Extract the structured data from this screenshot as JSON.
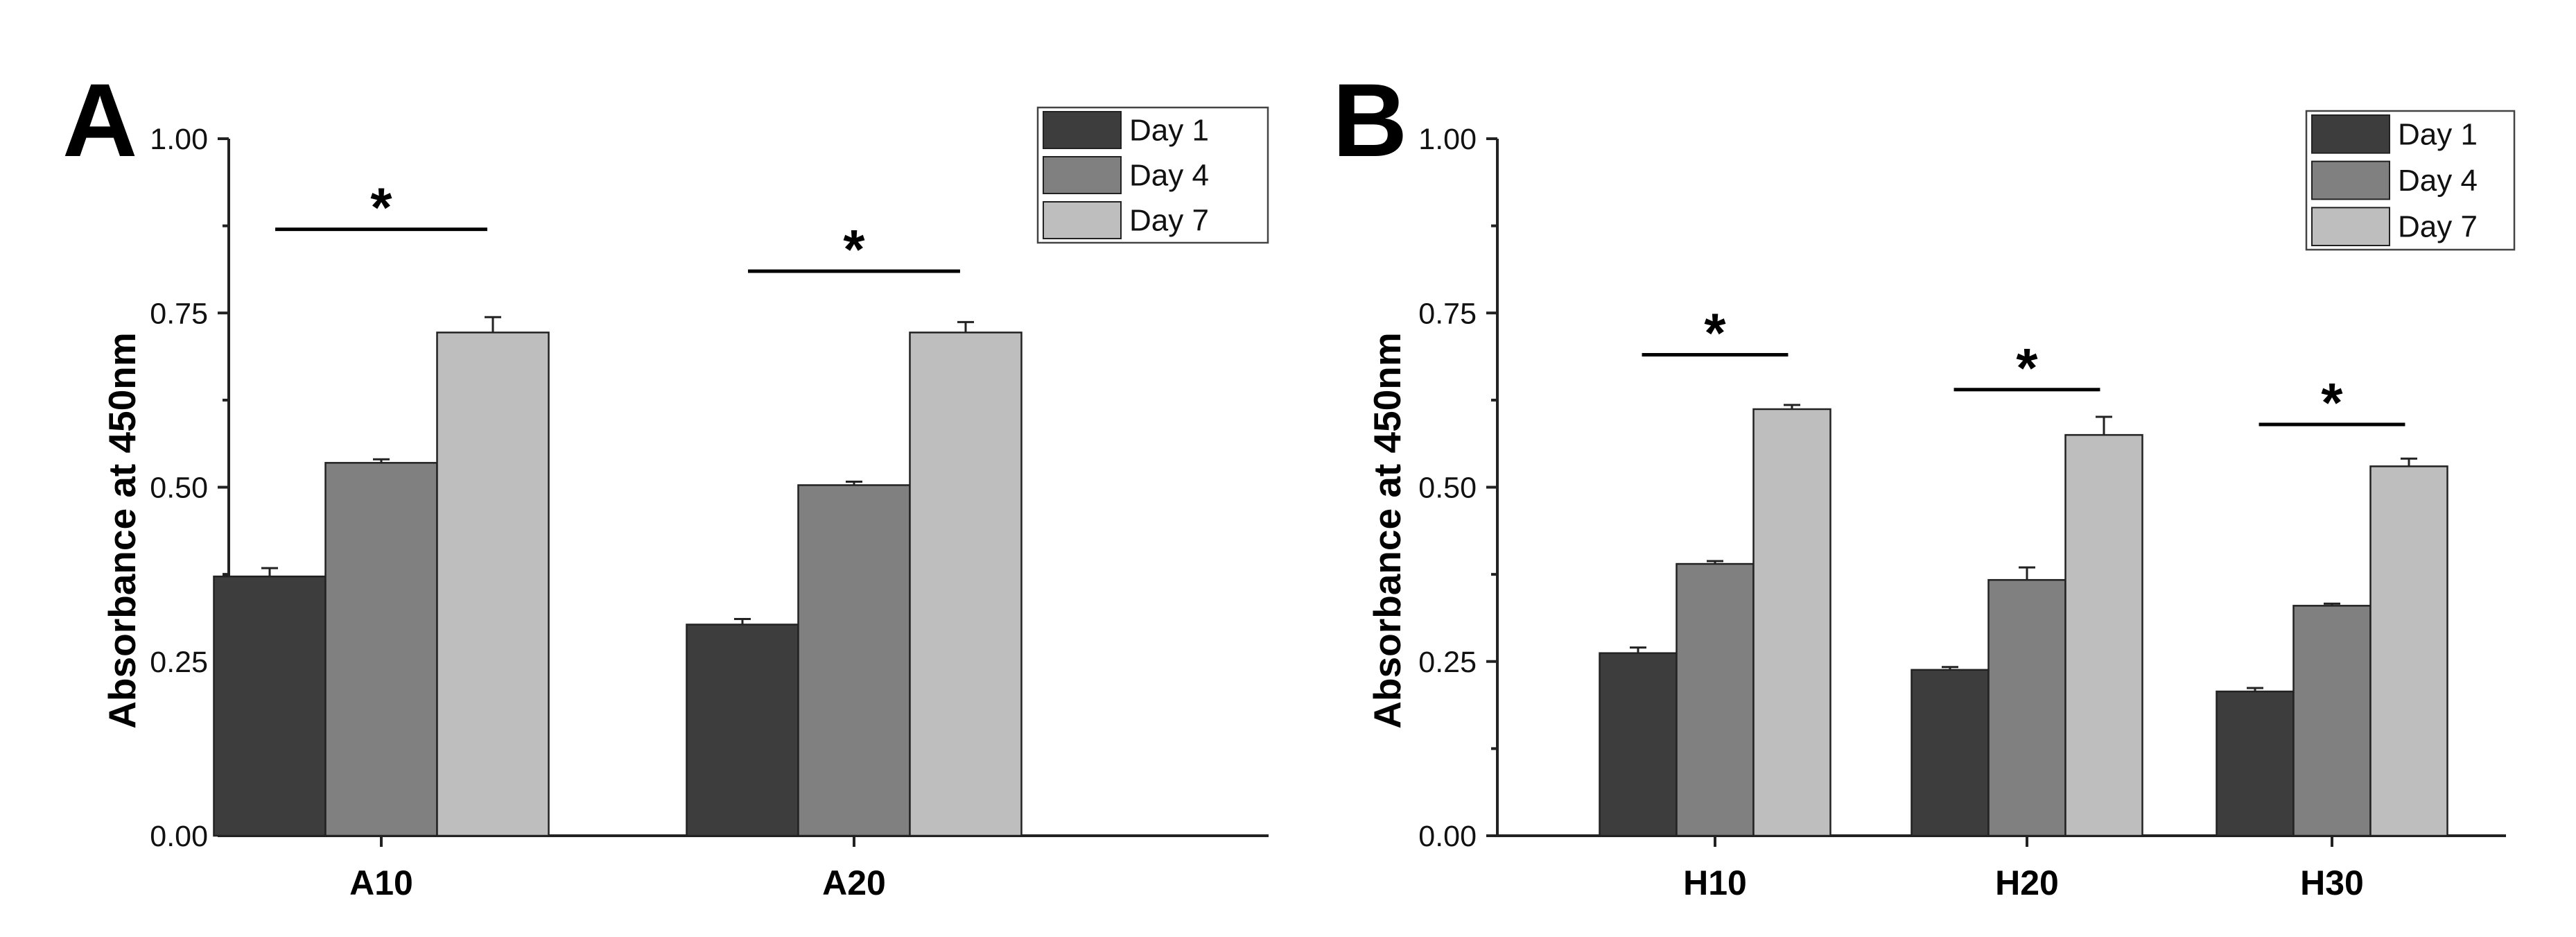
{
  "chart_data": [
    {
      "panel": "A",
      "type": "bar",
      "title": "",
      "xlabel": "",
      "ylabel": "Absorbance at 450nm",
      "ylim": [
        0,
        1.0
      ],
      "yticks": [
        "0.00",
        "0.25",
        "0.50",
        "0.75",
        "1.00"
      ],
      "categories": [
        "A10",
        "A20"
      ],
      "series": [
        {
          "name": "Day 1",
          "color": "#3d3d3d",
          "values": [
            0.372,
            0.303
          ],
          "errors": [
            0.012,
            0.008
          ]
        },
        {
          "name": "Day 4",
          "color": "#808080",
          "values": [
            0.535,
            0.503
          ],
          "errors": [
            0.005,
            0.005
          ]
        },
        {
          "name": "Day 7",
          "color": "#bebebe",
          "values": [
            0.722,
            0.722
          ],
          "errors": [
            0.022,
            0.015
          ]
        }
      ],
      "legend": {
        "position": "top-right",
        "entries": [
          "Day 1",
          "Day 4",
          "Day 7"
        ]
      },
      "significance": [
        {
          "category": "A10",
          "label": "*",
          "y": 0.87
        },
        {
          "category": "A20",
          "label": "*",
          "y": 0.81
        }
      ]
    },
    {
      "panel": "B",
      "type": "bar",
      "title": "",
      "xlabel": "",
      "ylabel": "Absorbance at 450nm",
      "ylim": [
        0,
        1.0
      ],
      "yticks": [
        "0.00",
        "0.25",
        "0.50",
        "0.75",
        "1.00"
      ],
      "categories": [
        "H10",
        "H20",
        "H30"
      ],
      "series": [
        {
          "name": "Day 1",
          "color": "#3d3d3d",
          "values": [
            0.262,
            0.238,
            0.207
          ],
          "errors": [
            0.008,
            0.004,
            0.005
          ]
        },
        {
          "name": "Day 4",
          "color": "#808080",
          "values": [
            0.39,
            0.367,
            0.33
          ],
          "errors": [
            0.004,
            0.018,
            0.003
          ]
        },
        {
          "name": "Day 7",
          "color": "#bebebe",
          "values": [
            0.612,
            0.575,
            0.53
          ],
          "errors": [
            0.006,
            0.026,
            0.011
          ]
        }
      ],
      "legend": {
        "position": "top-right",
        "entries": [
          "Day 1",
          "Day 4",
          "Day 7"
        ]
      },
      "significance": [
        {
          "category": "H10",
          "label": "*",
          "y": 0.69
        },
        {
          "category": "H20",
          "label": "*",
          "y": 0.64
        },
        {
          "category": "H30",
          "label": "*",
          "y": 0.59
        }
      ]
    }
  ]
}
